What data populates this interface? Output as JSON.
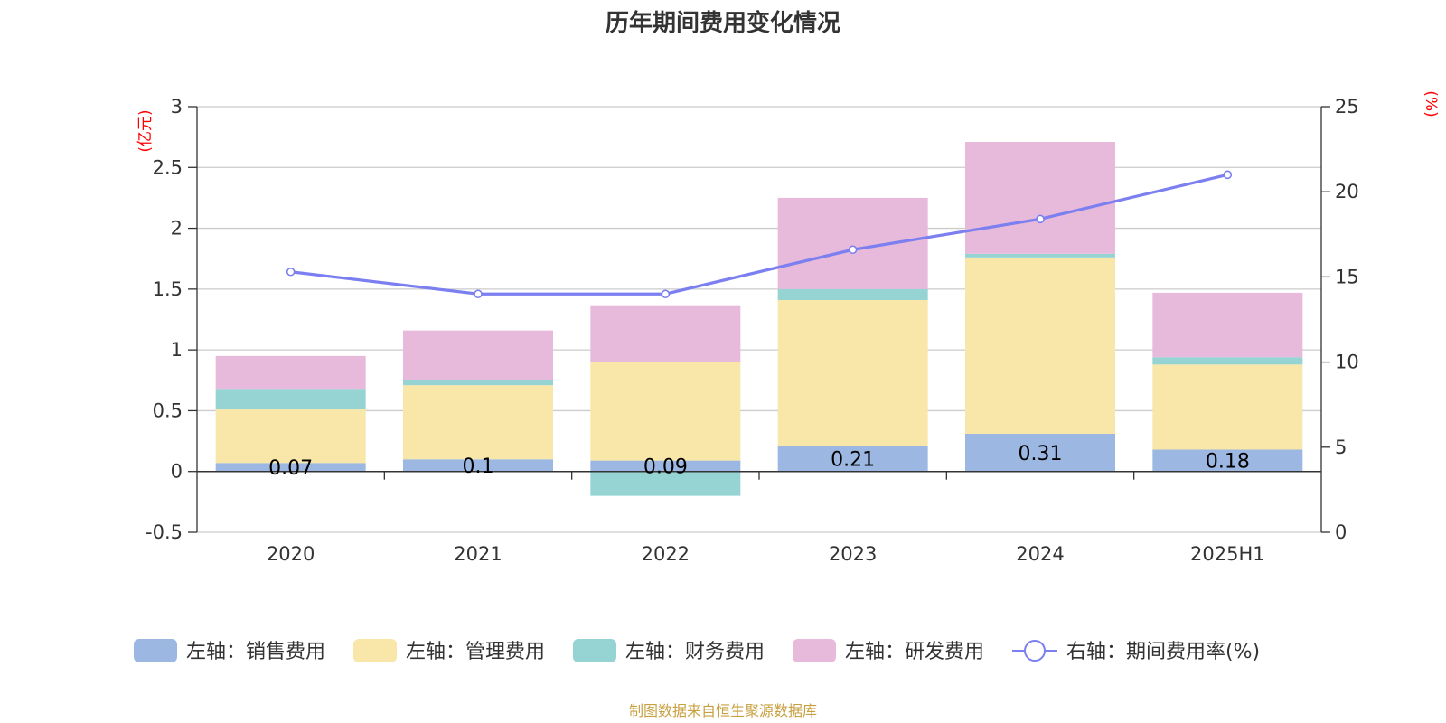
{
  "chart_data": {
    "type": "bar",
    "stacked": true,
    "title": "历年期间费用变化情况",
    "categories": [
      "2020",
      "2021",
      "2022",
      "2023",
      "2024",
      "2025H1"
    ],
    "left_axis": {
      "unit": "(亿元)",
      "ylim": [
        -0.5,
        3
      ],
      "ticks": [
        -0.5,
        0,
        0.5,
        1,
        1.5,
        2,
        2.5,
        3
      ],
      "tick_labels": [
        "-0.5",
        "0",
        "0.5",
        "1",
        "1.5",
        "2",
        "2.5",
        "3"
      ]
    },
    "right_axis": {
      "unit": "(%)",
      "ylim": [
        0,
        25
      ],
      "ticks": [
        0,
        5,
        10,
        15,
        20,
        25
      ],
      "tick_labels": [
        "0",
        "5",
        "10",
        "15",
        "20",
        "25"
      ]
    },
    "series": [
      {
        "name": "左轴：销售费用",
        "type": "bar",
        "axis": "left",
        "color": "#9cb8e2",
        "values": [
          0.07,
          0.1,
          0.09,
          0.21,
          0.31,
          0.18
        ],
        "labels": [
          "0.07",
          "0.1",
          "0.09",
          "0.21",
          "0.31",
          "0.18"
        ]
      },
      {
        "name": "左轴：管理费用",
        "type": "bar",
        "axis": "left",
        "color": "#f8e7a8",
        "values": [
          0.44,
          0.61,
          0.81,
          1.2,
          1.45,
          0.7
        ]
      },
      {
        "name": "左轴：财务费用",
        "type": "bar",
        "axis": "left",
        "color": "#96d3d3",
        "values": [
          0.17,
          0.04,
          -0.2,
          0.09,
          0.03,
          0.06
        ]
      },
      {
        "name": "左轴：研发费用",
        "type": "bar",
        "axis": "left",
        "color": "#e7b9da",
        "values": [
          0.27,
          0.41,
          0.46,
          0.75,
          0.92,
          0.53
        ]
      },
      {
        "name": "右轴：期间费用率(%)",
        "type": "line",
        "axis": "right",
        "color": "#7b7ff0",
        "values": [
          15.3,
          14.0,
          14.0,
          16.6,
          18.4,
          21.0
        ]
      }
    ],
    "grid": true,
    "legend": "bottom",
    "source": "制图数据来自恒生聚源数据库"
  }
}
